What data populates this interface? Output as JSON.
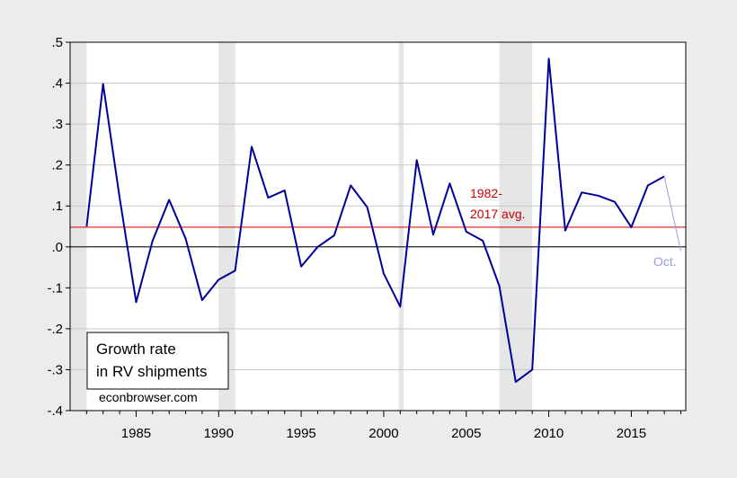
{
  "chart_data": {
    "type": "line",
    "title": "",
    "xlabel": "",
    "ylabel": "",
    "xlim": [
      1981,
      2018.3
    ],
    "ylim": [
      -0.4,
      0.5
    ],
    "x_ticks": [
      1985,
      1990,
      1995,
      2000,
      2005,
      2010,
      2015
    ],
    "x_tick_labels": [
      "1985",
      "1990",
      "1995",
      "2000",
      "2005",
      "2010",
      "2015"
    ],
    "y_ticks": [
      -0.4,
      -0.3,
      -0.2,
      -0.1,
      0.0,
      0.1,
      0.2,
      0.3,
      0.4,
      0.5
    ],
    "y_tick_labels": [
      "-.4",
      "-.3",
      "-.2",
      "-.1",
      ".0",
      ".1",
      ".2",
      ".3",
      ".4",
      ".5"
    ],
    "grid": true,
    "recessions": [
      [
        1981.0,
        1982.0
      ],
      [
        1990.0,
        1991.0
      ],
      [
        2000.9,
        2001.2
      ],
      [
        2007.0,
        2009.0
      ]
    ],
    "series": [
      {
        "name": "Growth rate in RV shipments",
        "color": "#000099",
        "x": [
          1982,
          1983,
          1984,
          1985,
          1986,
          1987,
          1988,
          1989,
          1990,
          1991,
          1992,
          1993,
          1994,
          1995,
          1996,
          1997,
          1998,
          1999,
          2000,
          2001,
          2002,
          2003,
          2004,
          2005,
          2006,
          2007,
          2008,
          2009,
          2010,
          2011,
          2012,
          2013,
          2014,
          2015,
          2016,
          2017
        ],
        "values": [
          0.05,
          0.398,
          0.12,
          -0.135,
          0.015,
          0.115,
          0.02,
          -0.13,
          -0.08,
          -0.058,
          0.245,
          0.12,
          0.138,
          -0.048,
          0.0,
          0.028,
          0.15,
          0.097,
          -0.065,
          -0.146,
          0.212,
          0.03,
          0.155,
          0.037,
          0.015,
          -0.095,
          -0.33,
          -0.3,
          0.46,
          0.04,
          0.133,
          0.125,
          0.11,
          0.048,
          0.15,
          0.172
        ]
      },
      {
        "name": "Oct.",
        "color": "#9a9ae6",
        "x": [
          2017,
          2018
        ],
        "values": [
          0.172,
          -0.01
        ]
      }
    ],
    "reference_lines": [
      {
        "value": 0.048,
        "color": "#cc0000",
        "label": "1982-2017 avg."
      },
      {
        "value": 0.0,
        "color": "#000000"
      }
    ],
    "annotations": {
      "avg_line1": "1982-",
      "avg_line2": "2017 avg.",
      "oct_label": "Oct."
    },
    "legend": {
      "line1": "Growth rate",
      "line2": "in RV shipments",
      "position": "bottom-left"
    },
    "credit": "econbrowser.com"
  }
}
